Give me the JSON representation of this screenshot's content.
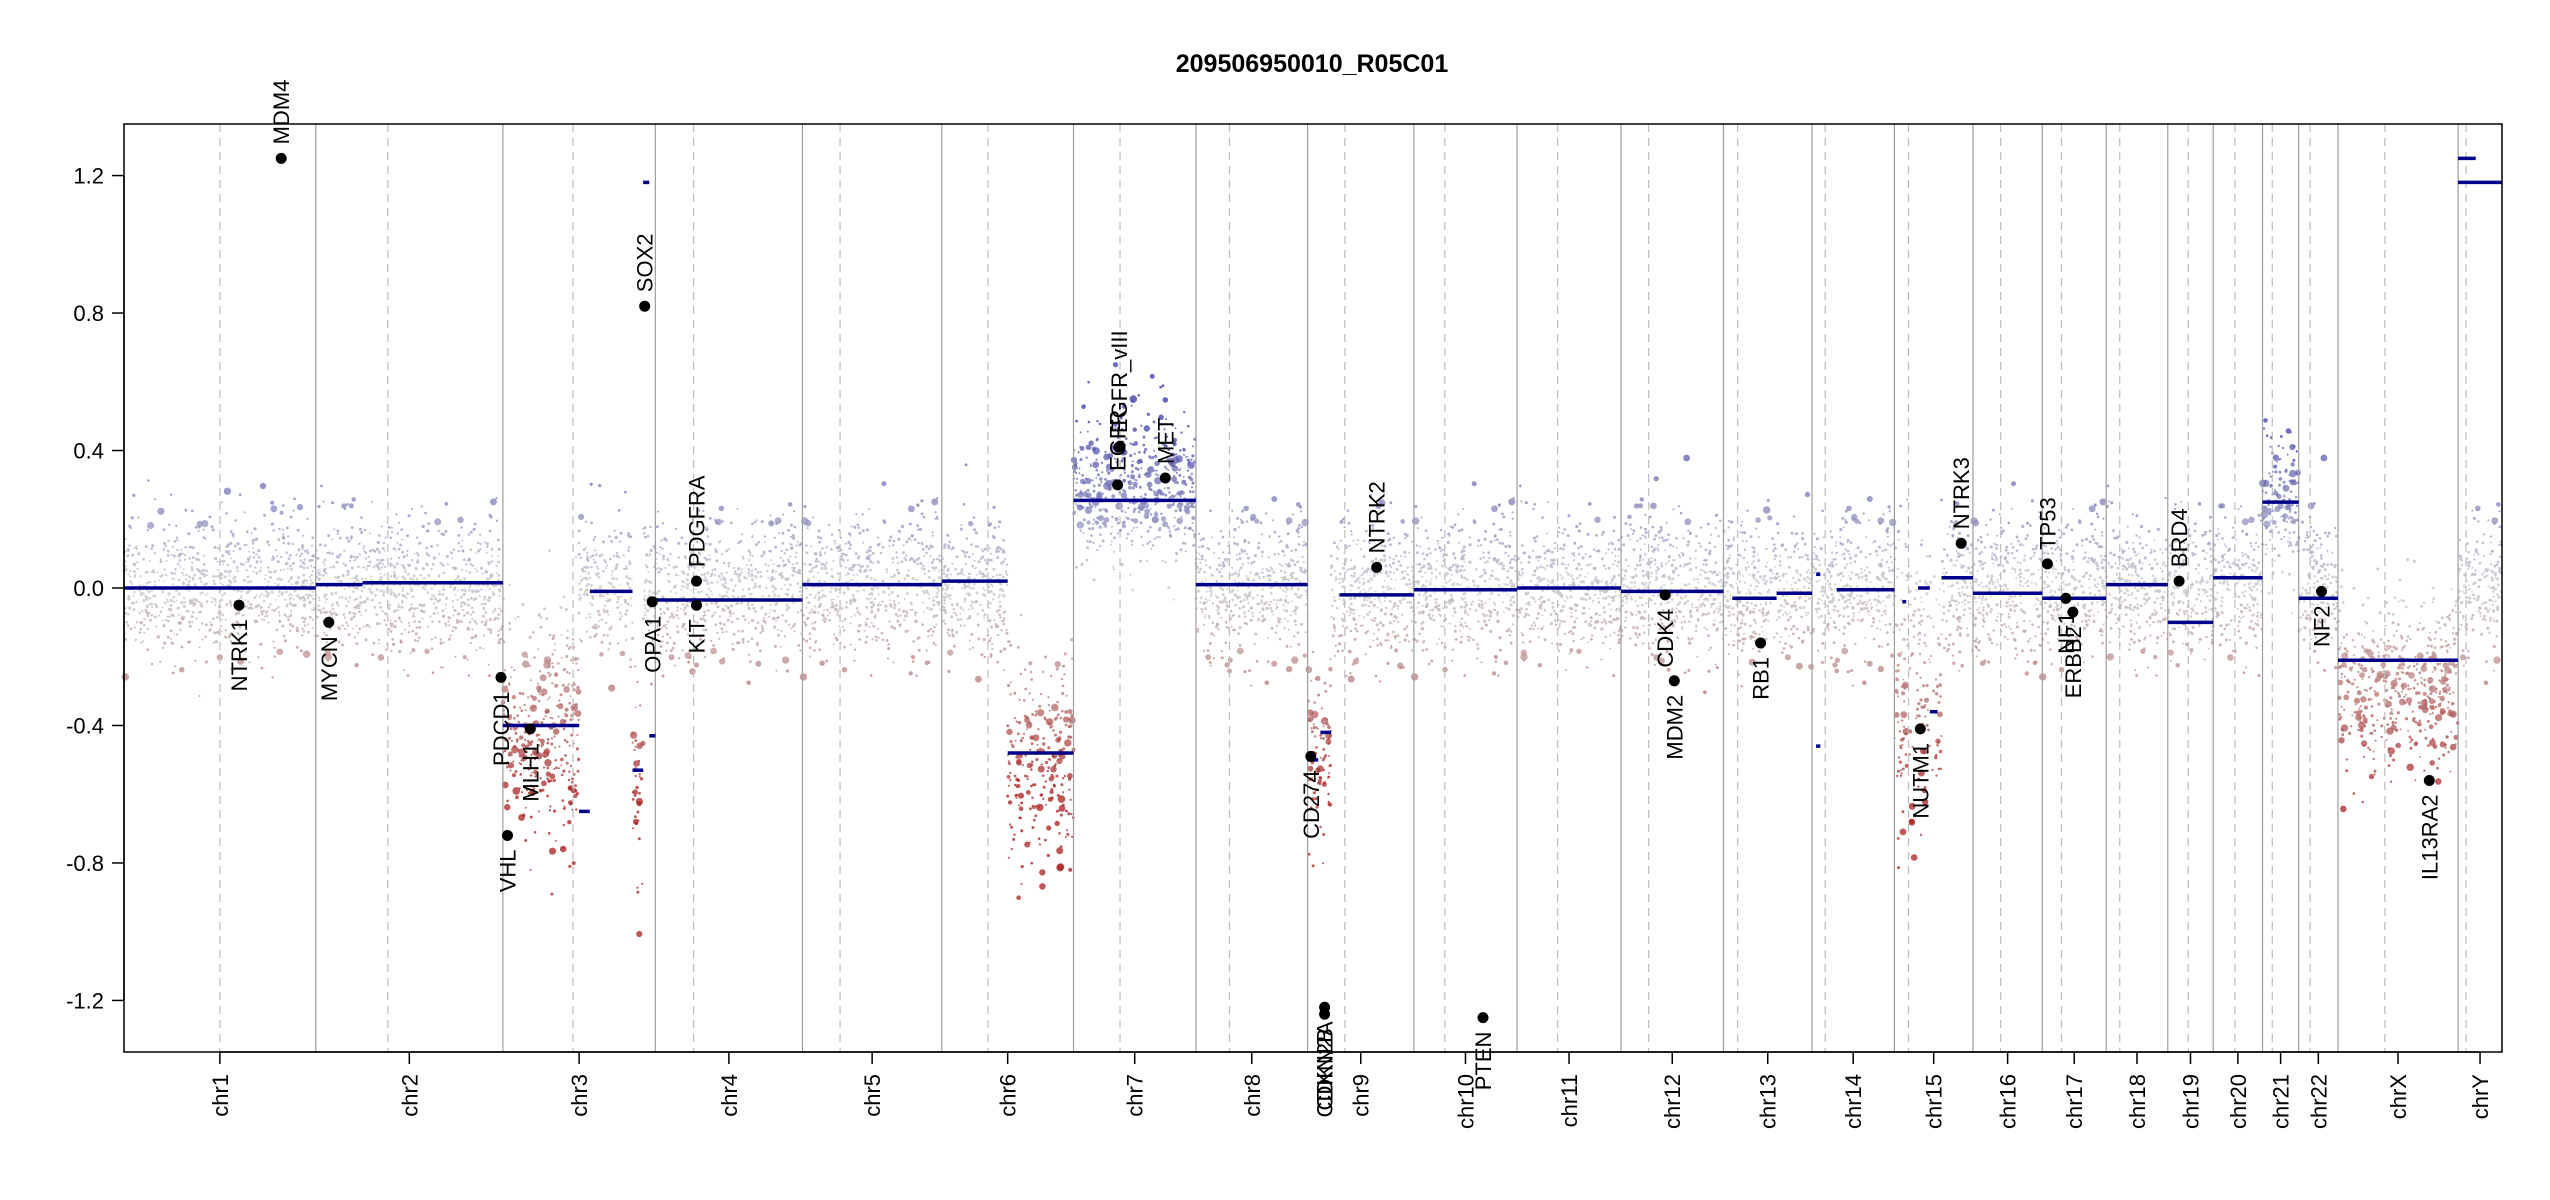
{
  "title": "209506950010_R05C01",
  "chart_data": {
    "type": "scatter",
    "title": "209506950010_R05C01",
    "xlabel": "",
    "ylabel": "",
    "ylim": [
      -1.35,
      1.35
    ],
    "yticks": [
      -1.2,
      -0.8,
      -0.4,
      0.0,
      0.4,
      0.8,
      1.2
    ],
    "ytick_labels": [
      "-1.2",
      "-0.8",
      "-0.4",
      "0.0",
      "0.4",
      "0.8",
      "1.2"
    ],
    "colors": {
      "gain": "#3a3aa8",
      "loss": "#a82020",
      "neutral": "#c4c4c4",
      "segment": "#00008b",
      "gene_point": "#000000",
      "chrom_boundary": "#9e9e9e",
      "centromere": "#bdbdbd"
    },
    "chromosomes": [
      {
        "name": "chr1",
        "size": 249,
        "centromere": 0.5
      },
      {
        "name": "chr2",
        "size": 243,
        "centromere": 0.385
      },
      {
        "name": "chr3",
        "size": 198,
        "centromere": 0.46
      },
      {
        "name": "chr4",
        "size": 191,
        "centromere": 0.26
      },
      {
        "name": "chr5",
        "size": 181,
        "centromere": 0.27
      },
      {
        "name": "chr6",
        "size": 171,
        "centromere": 0.35
      },
      {
        "name": "chr7",
        "size": 159,
        "centromere": 0.38
      },
      {
        "name": "chr8",
        "size": 145,
        "centromere": 0.3
      },
      {
        "name": "chr9",
        "size": 138,
        "centromere": 0.35
      },
      {
        "name": "chr10",
        "size": 134,
        "centromere": 0.3
      },
      {
        "name": "chr11",
        "size": 135,
        "centromere": 0.39
      },
      {
        "name": "chr12",
        "size": 133,
        "centromere": 0.27
      },
      {
        "name": "chr13",
        "size": 115,
        "centromere": 0.16
      },
      {
        "name": "chr14",
        "size": 107,
        "centromere": 0.16
      },
      {
        "name": "chr15",
        "size": 102,
        "centromere": 0.18
      },
      {
        "name": "chr16",
        "size": 90,
        "centromere": 0.4
      },
      {
        "name": "chr17",
        "size": 83,
        "centromere": 0.3
      },
      {
        "name": "chr18",
        "size": 80,
        "centromere": 0.22
      },
      {
        "name": "chr19",
        "size": 59,
        "centromere": 0.45
      },
      {
        "name": "chr20",
        "size": 64,
        "centromere": 0.44
      },
      {
        "name": "chr21",
        "size": 47,
        "centromere": 0.27
      },
      {
        "name": "chr22",
        "size": 51,
        "centromere": 0.29
      },
      {
        "name": "chrX",
        "size": 156,
        "centromere": 0.39
      },
      {
        "name": "chrY",
        "size": 57,
        "centromere": 0.18
      }
    ],
    "segments": [
      {
        "chrom": "chr1",
        "start": 0.0,
        "end": 1.0,
        "value": 0.0
      },
      {
        "chrom": "chr2",
        "start": 0.0,
        "end": 0.25,
        "value": 0.01
      },
      {
        "chrom": "chr2",
        "start": 0.25,
        "end": 1.0,
        "value": 0.015
      },
      {
        "chrom": "chr3",
        "start": 0.0,
        "end": 0.5,
        "value": -0.4
      },
      {
        "chrom": "chr3",
        "start": 0.5,
        "end": 0.57,
        "value": -0.65
      },
      {
        "chrom": "chr3",
        "start": 0.57,
        "end": 0.85,
        "value": -0.01
      },
      {
        "chrom": "chr3",
        "start": 0.85,
        "end": 0.92,
        "value": -0.53
      },
      {
        "chrom": "chr3",
        "start": 0.92,
        "end": 0.96,
        "value": 1.18
      },
      {
        "chrom": "chr3",
        "start": 0.96,
        "end": 1.0,
        "value": -0.43
      },
      {
        "chrom": "chr4",
        "start": 0.0,
        "end": 1.0,
        "value": -0.035
      },
      {
        "chrom": "chr5",
        "start": 0.0,
        "end": 1.0,
        "value": 0.01
      },
      {
        "chrom": "chr6",
        "start": 0.0,
        "end": 0.5,
        "value": 0.02
      },
      {
        "chrom": "chr6",
        "start": 0.5,
        "end": 1.0,
        "value": -0.48
      },
      {
        "chrom": "chr7",
        "start": 0.0,
        "end": 1.0,
        "value": 0.255
      },
      {
        "chrom": "chr8",
        "start": 0.0,
        "end": 1.0,
        "value": 0.01
      },
      {
        "chrom": "chr9",
        "start": 0.0,
        "end": 0.1,
        "value": -0.5
      },
      {
        "chrom": "chr9",
        "start": 0.12,
        "end": 0.22,
        "value": -0.42
      },
      {
        "chrom": "chr9",
        "start": 0.3,
        "end": 1.0,
        "value": -0.02
      },
      {
        "chrom": "chr10",
        "start": 0.0,
        "end": 1.0,
        "value": -0.005
      },
      {
        "chrom": "chr11",
        "start": 0.0,
        "end": 1.0,
        "value": 0.0
      },
      {
        "chrom": "chr12",
        "start": 0.0,
        "end": 1.0,
        "value": -0.01
      },
      {
        "chrom": "chr13",
        "start": 0.1,
        "end": 0.6,
        "value": -0.03
      },
      {
        "chrom": "chr13",
        "start": 0.6,
        "end": 1.0,
        "value": -0.015
      },
      {
        "chrom": "chr14",
        "start": 0.05,
        "end": 0.1,
        "value": 0.04
      },
      {
        "chrom": "chr14",
        "start": 0.05,
        "end": 0.1,
        "value": -0.46
      },
      {
        "chrom": "chr14",
        "start": 0.3,
        "end": 1.0,
        "value": -0.005
      },
      {
        "chrom": "chr15",
        "start": 0.1,
        "end": 0.15,
        "value": -0.04
      },
      {
        "chrom": "chr15",
        "start": 0.3,
        "end": 0.45,
        "value": 0.0
      },
      {
        "chrom": "chr15",
        "start": 0.45,
        "end": 0.55,
        "value": -0.36
      },
      {
        "chrom": "chr15",
        "start": 0.6,
        "end": 1.0,
        "value": 0.03
      },
      {
        "chrom": "chr16",
        "start": 0.0,
        "end": 1.0,
        "value": -0.015
      },
      {
        "chrom": "chr17",
        "start": 0.0,
        "end": 1.0,
        "value": -0.03
      },
      {
        "chrom": "chr18",
        "start": 0.0,
        "end": 1.0,
        "value": 0.01
      },
      {
        "chrom": "chr19",
        "start": 0.0,
        "end": 1.0,
        "value": -0.1
      },
      {
        "chrom": "chr20",
        "start": 0.0,
        "end": 1.0,
        "value": 0.03
      },
      {
        "chrom": "chr21",
        "start": 0.0,
        "end": 1.0,
        "value": 0.25
      },
      {
        "chrom": "chr22",
        "start": 0.0,
        "end": 1.0,
        "value": -0.03
      },
      {
        "chrom": "chrX",
        "start": 0.0,
        "end": 1.0,
        "value": -0.21
      },
      {
        "chrom": "chrY",
        "start": 0.0,
        "end": 1.0,
        "value": 1.18
      },
      {
        "chrom": "chrY",
        "start": 0.0,
        "end": 0.4,
        "value": 1.25
      }
    ],
    "genes": [
      {
        "name": "NTRK1",
        "chrom": "chr1",
        "pos": 0.6,
        "value": -0.05
      },
      {
        "name": "MDM4",
        "chrom": "chr1",
        "pos": 0.82,
        "value": 1.25
      },
      {
        "name": "MYCN",
        "chrom": "chr2",
        "pos": 0.07,
        "value": -0.1
      },
      {
        "name": "PDCD1",
        "chrom": "chr2",
        "pos": 0.99,
        "value": -0.26
      },
      {
        "name": "VHL",
        "chrom": "chr3",
        "pos": 0.03,
        "value": -0.72
      },
      {
        "name": "MLH1",
        "chrom": "chr3",
        "pos": 0.18,
        "value": -0.41
      },
      {
        "name": "SOX2",
        "chrom": "chr3",
        "pos": 0.93,
        "value": 0.82
      },
      {
        "name": "OPA1",
        "chrom": "chr3",
        "pos": 0.98,
        "value": -0.04
      },
      {
        "name": "PDGFRA",
        "chrom": "chr4",
        "pos": 0.28,
        "value": 0.02
      },
      {
        "name": "KIT",
        "chrom": "chr4",
        "pos": 0.28,
        "value": -0.05
      },
      {
        "name": "EGFR",
        "chrom": "chr7",
        "pos": 0.36,
        "value": 0.3
      },
      {
        "name": "EGFR_vIII",
        "chrom": "chr7",
        "pos": 0.37,
        "value": 0.41
      },
      {
        "name": "MET",
        "chrom": "chr7",
        "pos": 0.75,
        "value": 0.32
      },
      {
        "name": "CD274",
        "chrom": "chr9",
        "pos": 0.03,
        "value": -0.49
      },
      {
        "name": "CDKN2A",
        "chrom": "chr9",
        "pos": 0.16,
        "value": -1.22
      },
      {
        "name": "CDKN2B",
        "chrom": "chr9",
        "pos": 0.16,
        "value": -1.24
      },
      {
        "name": "NTRK2",
        "chrom": "chr9",
        "pos": 0.65,
        "value": 0.06
      },
      {
        "name": "PTEN",
        "chrom": "chr10",
        "pos": 0.67,
        "value": -1.25
      },
      {
        "name": "MDM2",
        "chrom": "chr12",
        "pos": 0.52,
        "value": -0.27
      },
      {
        "name": "CDK4",
        "chrom": "chr12",
        "pos": 0.43,
        "value": -0.02
      },
      {
        "name": "RB1",
        "chrom": "chr13",
        "pos": 0.42,
        "value": -0.16
      },
      {
        "name": "NUTM1",
        "chrom": "chr15",
        "pos": 0.33,
        "value": -0.41
      },
      {
        "name": "NTRK3",
        "chrom": "chr15",
        "pos": 0.85,
        "value": 0.13
      },
      {
        "name": "TP53",
        "chrom": "chr17",
        "pos": 0.08,
        "value": 0.07
      },
      {
        "name": "NF1",
        "chrom": "chr17",
        "pos": 0.37,
        "value": -0.03
      },
      {
        "name": "ERBB2",
        "chrom": "chr17",
        "pos": 0.48,
        "value": -0.07
      },
      {
        "name": "BRD4",
        "chrom": "chr19",
        "pos": 0.25,
        "value": 0.02
      },
      {
        "name": "NF2",
        "chrom": "chr22",
        "pos": 0.58,
        "value": -0.01
      },
      {
        "name": "IL13RA2",
        "chrom": "chrX",
        "pos": 0.76,
        "value": -0.56
      }
    ],
    "probe_profile": [
      {
        "chrom": "chr3",
        "start": 0.0,
        "end": 0.5,
        "mean": -0.42,
        "spread": 0.16
      },
      {
        "chrom": "chr3",
        "start": 0.85,
        "end": 0.92,
        "mean": -0.55,
        "spread": 0.2
      },
      {
        "chrom": "chr6",
        "start": 0.5,
        "end": 1.0,
        "mean": -0.5,
        "spread": 0.15
      },
      {
        "chrom": "chr7",
        "start": 0.0,
        "end": 1.0,
        "mean": 0.3,
        "spread": 0.11
      },
      {
        "chrom": "chr9",
        "start": 0.0,
        "end": 0.22,
        "mean": -0.45,
        "spread": 0.14
      },
      {
        "chrom": "chr15",
        "start": 0.0,
        "end": 0.6,
        "mean": -0.25,
        "spread": 0.22
      },
      {
        "chrom": "chr21",
        "start": 0.0,
        "end": 1.0,
        "mean": 0.26,
        "spread": 0.11
      },
      {
        "chrom": "chrX",
        "start": 0.0,
        "end": 1.0,
        "mean": -0.28,
        "spread": 0.12
      }
    ]
  }
}
